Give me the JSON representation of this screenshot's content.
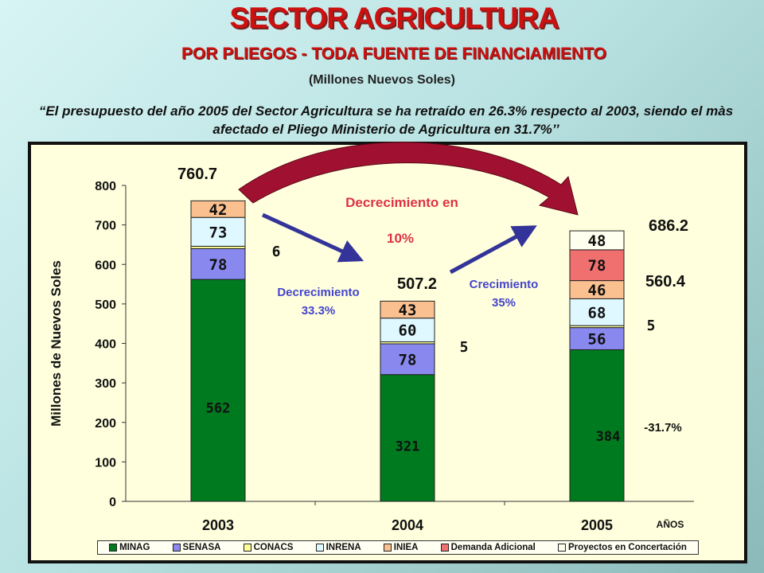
{
  "header": {
    "title": "SECTOR AGRICULTURA",
    "subtitle": "POR PLIEGOS - TODA FUENTE DE FINANCIAMIENTO",
    "units": "(Millones Nuevos Soles)",
    "quote": "“El presupuesto del año 2005 del Sector Agricultura se ha retraído en 26.3% respecto al 2003, siendo el màs afectado el Pliego Ministerio de Agricultura en 31.7%’’"
  },
  "chart_data": {
    "type": "bar",
    "stacked": true,
    "categories": [
      "2003",
      "2004",
      "2005"
    ],
    "xlabel": "AÑOS",
    "ylabel": "Millones de Nuevos Soles",
    "ylim": [
      0,
      800
    ],
    "yticks": [
      0,
      100,
      200,
      300,
      400,
      500,
      600,
      700,
      800
    ],
    "series": [
      {
        "name": "MINAG",
        "color": "#007a1f",
        "values": [
          562,
          321,
          384
        ],
        "labels": [
          "562",
          "321",
          "384"
        ]
      },
      {
        "name": "SENASA",
        "color": "#8888ee",
        "values": [
          78,
          78,
          56
        ],
        "labels": [
          "78",
          "78",
          "56"
        ]
      },
      {
        "name": "CONACS",
        "color": "#ffff99",
        "values": [
          6,
          5,
          5
        ],
        "labels": [
          "6",
          "5",
          "5"
        ]
      },
      {
        "name": "INRENA",
        "color": "#dff8ff",
        "values": [
          73,
          60,
          68
        ],
        "labels": [
          "73",
          "60",
          "68"
        ]
      },
      {
        "name": "INIEA",
        "color": "#fac090",
        "values": [
          42,
          43,
          46
        ],
        "labels": [
          "42",
          "43",
          "46"
        ]
      },
      {
        "name": "Demanda Adicional",
        "color": "#f07070",
        "values": [
          0,
          0,
          78
        ],
        "labels": [
          "",
          "",
          "78"
        ]
      },
      {
        "name": "Proyectos en Concertación",
        "color": "#fffff0",
        "values": [
          0,
          0,
          48
        ],
        "labels": [
          "",
          "",
          "48"
        ]
      }
    ],
    "totals": [
      "760.7",
      "507.2",
      "686.2"
    ],
    "subtotal_2005": "560.4",
    "annotations": {
      "decrease_total": "Decrecimiento en",
      "decrease_total_pct": "10%",
      "decrease_2004_line1": "Decrecimiento",
      "decrease_2004_line2": "33.3%",
      "growth_2005_line1": "Crecimiento",
      "growth_2005_line2": "35%",
      "minag_change": "-31.7%"
    },
    "grid": false,
    "legend_position": "bottom"
  }
}
